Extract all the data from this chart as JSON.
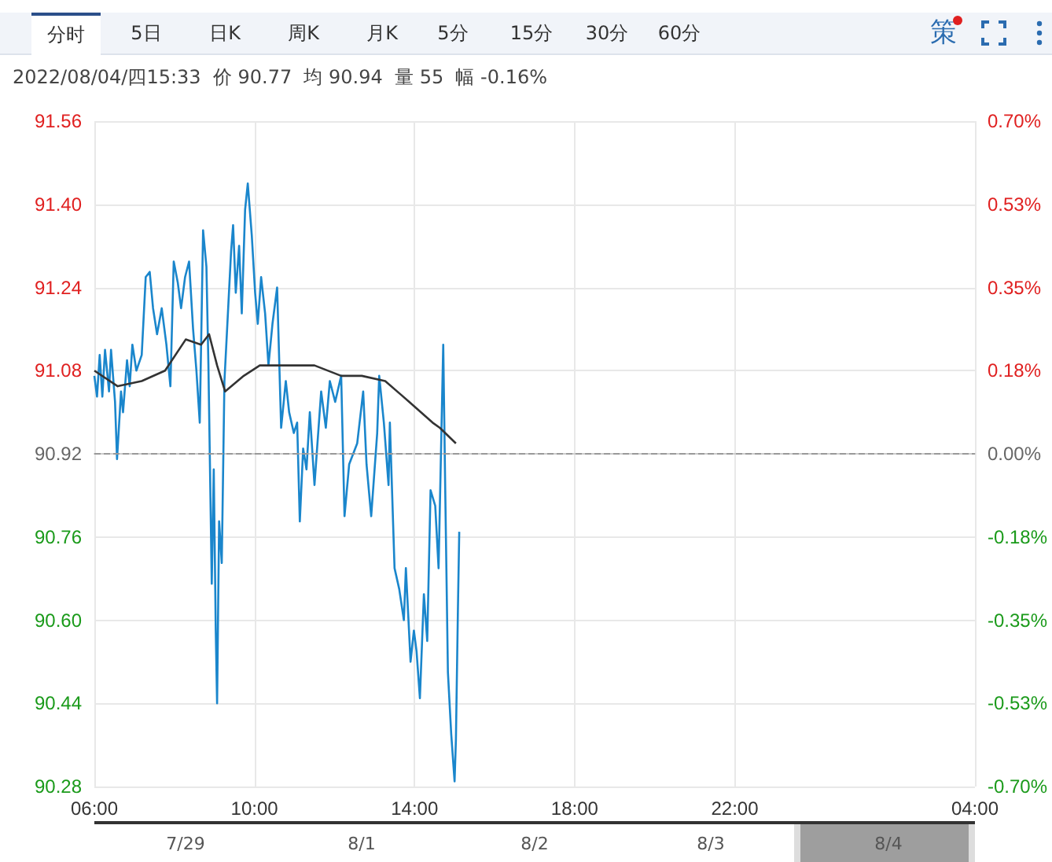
{
  "chart_data": {
    "type": "line",
    "title": "2022/08/04/四15:33  价 90.77  均 90.94  量 55  幅 -0.16%",
    "annotations": [
      "分时",
      "5日",
      "日K",
      "周K",
      "月K",
      "5分",
      "15分",
      "30分",
      "60分",
      "策",
      "7/29",
      "8/1",
      "8/2",
      "8/3",
      "8/4"
    ],
    "series": [
      {
        "color": "#1a86cc",
        "x": [
          "2022-08-04T06:00",
          "2022-08-04T06:04",
          "2022-08-04T06:08",
          "2022-08-04T06:12",
          "2022-08-04T06:16",
          "2022-08-04T06:22",
          "2022-08-04T06:25",
          "2022-08-04T06:31",
          "2022-08-04T06:34",
          "2022-08-04T06:40",
          "2022-08-04T06:43",
          "2022-08-04T06:49",
          "2022-08-04T06:53",
          "2022-08-04T06:57",
          "2022-08-04T07:03",
          "2022-08-04T07:11",
          "2022-08-04T07:17",
          "2022-08-04T07:23",
          "2022-08-04T07:28",
          "2022-08-04T07:34",
          "2022-08-04T07:41",
          "2022-08-04T07:48",
          "2022-08-04T07:54",
          "2022-08-04T07:59",
          "2022-08-04T08:05",
          "2022-08-04T08:10",
          "2022-08-04T08:16",
          "2022-08-04T08:22",
          "2022-08-04T08:28",
          "2022-08-04T08:33",
          "2022-08-04T08:38",
          "2022-08-04T08:43",
          "2022-08-04T08:48",
          "2022-08-04T08:51",
          "2022-08-04T08:56",
          "2022-08-04T08:59",
          "2022-08-04T09:02",
          "2022-08-04T09:04",
          "2022-08-04T09:07",
          "2022-08-04T09:11",
          "2022-08-04T09:15",
          "2022-08-04T09:21",
          "2022-08-04T09:25",
          "2022-08-04T09:28",
          "2022-08-04T09:32",
          "2022-08-04T09:37",
          "2022-08-04T09:41",
          "2022-08-04T09:46",
          "2022-08-04T09:50",
          "2022-08-04T09:56",
          "2022-08-04T10:01",
          "2022-08-04T10:05",
          "2022-08-04T10:10",
          "2022-08-04T10:16",
          "2022-08-04T10:21",
          "2022-08-04T10:27",
          "2022-08-04T10:34",
          "2022-08-04T10:40",
          "2022-08-04T10:47",
          "2022-08-04T10:52",
          "2022-08-04T10:59",
          "2022-08-04T11:04",
          "2022-08-04T11:08",
          "2022-08-04T11:13",
          "2022-08-04T11:18",
          "2022-08-04T11:23",
          "2022-08-04T11:30",
          "2022-08-04T11:40",
          "2022-08-04T11:47",
          "2022-08-04T11:53",
          "2022-08-04T12:01",
          "2022-08-04T12:10",
          "2022-08-04T12:15",
          "2022-08-04T12:22",
          "2022-08-04T12:34",
          "2022-08-04T12:43",
          "2022-08-04T12:48",
          "2022-08-04T12:55",
          "2022-08-04T13:04",
          "2022-08-04T13:07",
          "2022-08-04T13:14",
          "2022-08-04T13:21",
          "2022-08-04T13:23",
          "2022-08-04T13:30",
          "2022-08-04T13:37",
          "2022-08-04T13:44",
          "2022-08-04T13:47",
          "2022-08-04T13:54",
          "2022-08-04T13:59",
          "2022-08-04T14:03",
          "2022-08-04T14:08",
          "2022-08-04T14:14",
          "2022-08-04T14:19",
          "2022-08-04T14:24",
          "2022-08-04T14:31",
          "2022-08-04T14:36",
          "2022-08-04T14:43",
          "2022-08-04T14:46",
          "2022-08-04T14:50",
          "2022-08-04T14:55",
          "2022-08-04T15:00",
          "2022-08-04T15:02",
          "2022-08-04T15:05",
          "2022-08-04T15:07"
        ],
        "values": [
          91.07,
          91.03,
          91.11,
          91.03,
          91.12,
          91.04,
          91.12,
          91.02,
          90.91,
          91.04,
          91.0,
          91.1,
          91.05,
          91.13,
          91.08,
          91.11,
          91.26,
          91.27,
          91.2,
          91.15,
          91.2,
          91.13,
          91.05,
          91.29,
          91.25,
          91.2,
          91.26,
          91.29,
          91.16,
          91.08,
          90.98,
          91.35,
          91.28,
          91.09,
          90.67,
          90.89,
          90.58,
          90.44,
          90.79,
          90.71,
          91.06,
          91.21,
          91.31,
          91.36,
          91.23,
          91.32,
          91.19,
          91.39,
          91.44,
          91.34,
          91.23,
          91.17,
          91.26,
          91.19,
          91.09,
          91.17,
          91.24,
          90.97,
          91.06,
          91.0,
          90.96,
          90.98,
          90.79,
          90.93,
          90.89,
          91.0,
          90.86,
          91.04,
          90.97,
          91.06,
          91.02,
          91.07,
          90.8,
          90.9,
          90.94,
          91.04,
          90.9,
          90.8,
          90.96,
          91.07,
          90.98,
          90.86,
          90.98,
          90.7,
          90.66,
          90.6,
          90.7,
          90.52,
          90.58,
          90.54,
          90.45,
          90.65,
          90.56,
          90.85,
          90.82,
          90.7,
          91.13,
          90.85,
          90.5,
          90.38,
          90.29,
          90.37,
          90.62,
          90.77
        ]
      },
      {
        "color": "#333333",
        "x": [
          "2022-08-04T06:00",
          "2022-08-04T06:35",
          "2022-08-04T07:11",
          "2022-08-04T07:46",
          "2022-08-04T08:17",
          "2022-08-04T08:40",
          "2022-08-04T08:52",
          "2022-08-04T09:04",
          "2022-08-04T09:16",
          "2022-08-04T09:44",
          "2022-08-04T10:08",
          "2022-08-04T10:43",
          "2022-08-04T11:30",
          "2022-08-04T12:10",
          "2022-08-04T12:41",
          "2022-08-04T13:16",
          "2022-08-04T13:52",
          "2022-08-04T14:27",
          "2022-08-04T14:38",
          "2022-08-04T15:02"
        ],
        "values": [
          91.08,
          91.05,
          91.06,
          91.08,
          91.14,
          91.13,
          91.15,
          91.09,
          91.04,
          91.07,
          91.09,
          91.09,
          91.09,
          91.07,
          91.07,
          91.06,
          91.02,
          90.98,
          90.97,
          90.94
        ]
      }
    ],
    "xlim": [
      "2022-08-04T06:00",
      "2022-08-05T04:00"
    ],
    "xticks": [
      {
        "value": "2022-08-04T06:00",
        "label": "06:00"
      },
      {
        "value": "2022-08-04T10:00",
        "label": "10:00"
      },
      {
        "value": "2022-08-04T14:00",
        "label": "14:00"
      },
      {
        "value": "2022-08-04T18:00",
        "label": "18:00"
      },
      {
        "value": "2022-08-04T22:00",
        "label": "22:00"
      },
      {
        "value": "2022-08-05T04:00",
        "label": "04:00"
      }
    ],
    "ylim": [
      90.28,
      91.56
    ],
    "yticks": [
      {
        "value": 90.28,
        "label": "90.28"
      },
      {
        "value": 90.44,
        "label": "90.44"
      },
      {
        "value": 90.6,
        "label": "90.60"
      },
      {
        "value": 90.76,
        "label": "90.76"
      },
      {
        "value": 90.92,
        "label": "90.92"
      },
      {
        "value": 91.08,
        "label": "91.08"
      },
      {
        "value": 91.24,
        "label": "91.24"
      },
      {
        "value": 91.4,
        "label": "91.40"
      },
      {
        "value": 91.56,
        "label": "91.56"
      }
    ],
    "y2lim": [
      -0.7,
      0.7
    ],
    "y2ticks": [
      {
        "value": -0.7,
        "label": "-0.70%"
      },
      {
        "value": -0.525,
        "label": "-0.53%"
      },
      {
        "value": -0.35,
        "label": "-0.35%"
      },
      {
        "value": -0.175,
        "label": "-0.18%"
      },
      {
        "value": 0,
        "label": "0.00%"
      },
      {
        "value": 0.175,
        "label": "0.18%"
      },
      {
        "value": 0.35,
        "label": "0.35%"
      },
      {
        "value": 0.525,
        "label": "0.53%"
      },
      {
        "value": 0.7,
        "label": "0.70%"
      }
    ],
    "ref_lines": [
      {
        "axis": "y",
        "value": 90.92,
        "color": "#999999",
        "line_style": "dashed"
      }
    ],
    "grid": true,
    "marker": "none",
    "line_style": "solid"
  }
}
